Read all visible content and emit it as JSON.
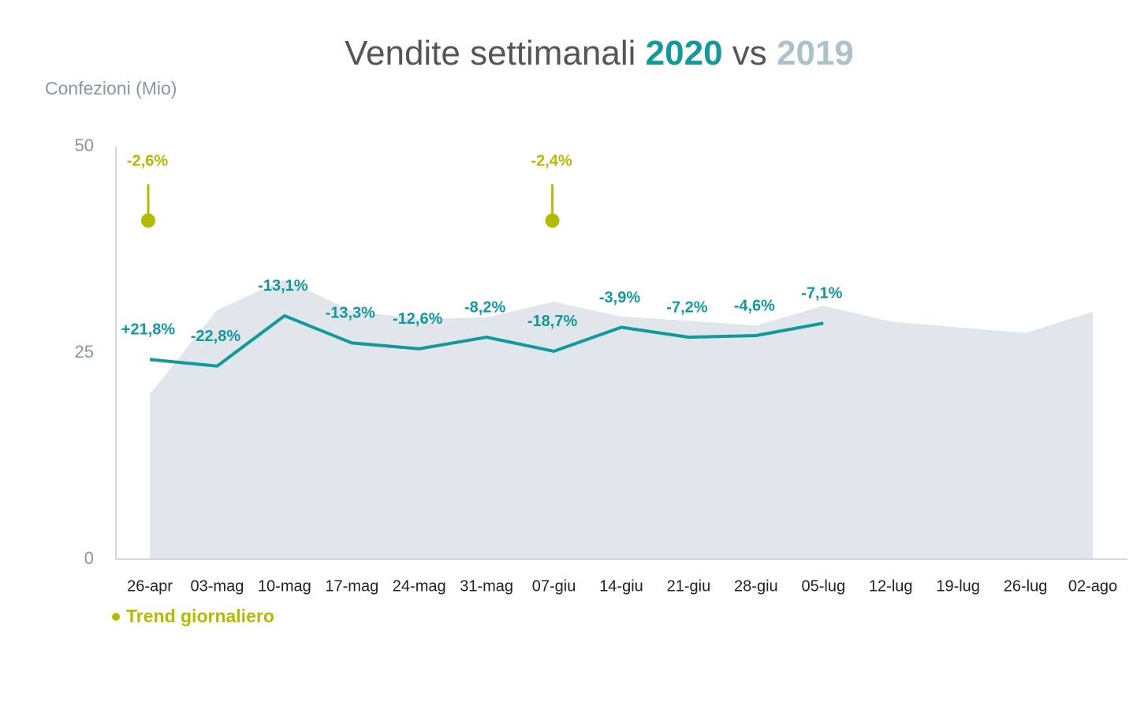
{
  "chart_data": {
    "type": "line",
    "title": "Vendite settimanali",
    "title_vs": "vs",
    "y_label": "Confezioni (Mio)",
    "categories": [
      "26-apr",
      "03-mag",
      "10-mag",
      "17-mag",
      "24-mag",
      "31-mag",
      "07-giu",
      "14-giu",
      "21-giu",
      "28-giu",
      "05-lug",
      "12-lug",
      "19-lug",
      "26-lug",
      "02-ago"
    ],
    "ylim": [
      0,
      50
    ],
    "yticks": [
      0,
      25,
      50
    ],
    "series": [
      {
        "name": "2020",
        "color": "#11999b",
        "style": "line",
        "values": [
          24.2,
          23.4,
          29.5,
          26.2,
          25.5,
          26.9,
          25.2,
          28.1,
          26.9,
          27.1,
          28.6,
          null,
          null,
          null,
          null
        ]
      },
      {
        "name": "2019",
        "color": "#abc2c6",
        "area_color": "#e1e5ec",
        "style": "area",
        "values": [
          20.0,
          30.2,
          33.9,
          30.1,
          29.1,
          29.3,
          31.2,
          29.4,
          28.9,
          28.3,
          30.7,
          28.8,
          28.1,
          27.4,
          30.0
        ]
      }
    ],
    "changes": {
      "values": [
        21.8,
        -22.8,
        -13.1,
        -13.3,
        -12.6,
        -8.2,
        -18.7,
        -3.9,
        -7.2,
        -4.6,
        -7.1
      ],
      "value_labels": [
        "+21,8%",
        "-22,8%",
        "-13,1%",
        "-13,3%",
        "-12,6%",
        "-8,2%",
        "-18,7%",
        "-3,9%",
        "-7,2%",
        "-4,6%",
        "-7,1%"
      ]
    },
    "trend": {
      "name": "Trend giornaliero",
      "color": "#b3bb00",
      "categories": [
        "26-apr",
        "07-giu"
      ],
      "values": [
        -2.6,
        -2.4
      ],
      "value_labels": [
        "-2,6%",
        "-2,4%"
      ]
    }
  }
}
